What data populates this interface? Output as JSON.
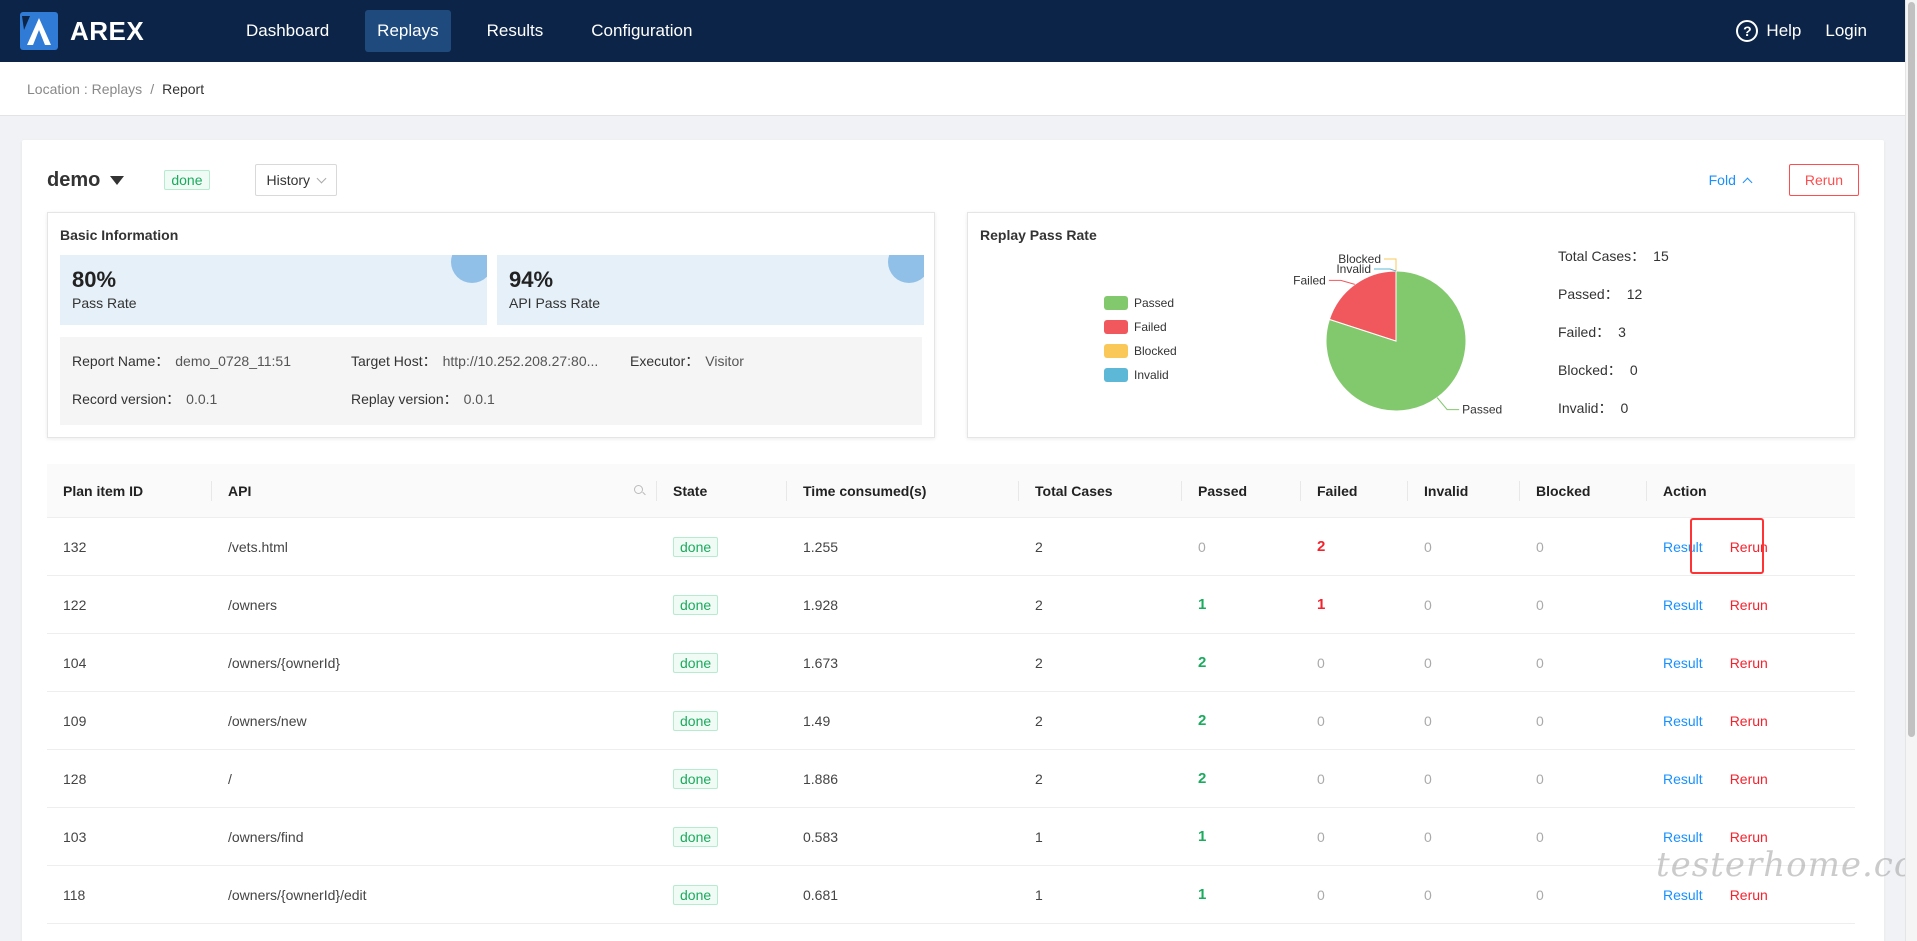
{
  "header": {
    "logo_text": "AREX",
    "nav": [
      "Dashboard",
      "Replays",
      "Results",
      "Configuration"
    ],
    "active_nav": 1,
    "help_label": "Help",
    "login_label": "Login"
  },
  "breadcrumb": {
    "location_label": "Location : Replays",
    "separator": "/",
    "current": "Report"
  },
  "report": {
    "plan_name": "demo",
    "status": "done",
    "history_label": "History",
    "fold_label": "Fold",
    "rerun_label": "Rerun"
  },
  "basic_info": {
    "title": "Basic Information",
    "pass_rate": {
      "value": "80%",
      "label": "Pass Rate"
    },
    "api_pass_rate": {
      "value": "94%",
      "label": "API Pass Rate"
    },
    "fields": [
      {
        "key": "Report Name：",
        "value": "demo_0728_11:51"
      },
      {
        "key": "Target Host：",
        "value": "http://10.252.208.27:80..."
      },
      {
        "key": "Executor：",
        "value": "Visitor"
      },
      {
        "key": "Record version：",
        "value": "0.0.1"
      },
      {
        "key": "Replay version：",
        "value": "0.0.1"
      }
    ]
  },
  "pass_rate_panel": {
    "title": "Replay Pass Rate",
    "legend": [
      {
        "name": "Passed",
        "color": "#82c96e"
      },
      {
        "name": "Failed",
        "color": "#f0585e"
      },
      {
        "name": "Blocked",
        "color": "#fac858"
      },
      {
        "name": "Invalid",
        "color": "#5cb8d6"
      }
    ],
    "summary": [
      {
        "key": "Total Cases：",
        "value": "15"
      },
      {
        "key": "Passed：",
        "value": "12"
      },
      {
        "key": "Failed：",
        "value": "3"
      },
      {
        "key": "Blocked：",
        "value": "0"
      },
      {
        "key": "Invalid：",
        "value": "0"
      }
    ]
  },
  "chart_data": {
    "type": "pie",
    "title": "Replay Pass Rate",
    "categories": [
      "Passed",
      "Failed",
      "Blocked",
      "Invalid"
    ],
    "values": [
      12,
      3,
      0,
      0
    ],
    "colors": [
      "#82c96e",
      "#f0585e",
      "#fac858",
      "#5cb8d6"
    ],
    "legend": "left"
  },
  "table": {
    "columns": [
      "Plan item ID",
      "API",
      "State",
      "Time consumed(s)",
      "Total Cases",
      "Passed",
      "Failed",
      "Invalid",
      "Blocked",
      "Action"
    ],
    "result_label": "Result",
    "rerun_label": "Rerun",
    "rows": [
      {
        "id": "132",
        "api": "/vets.html",
        "state": "done",
        "time": "1.255",
        "total": "2",
        "passed": "0",
        "failed": "2",
        "invalid": "0",
        "blocked": "0"
      },
      {
        "id": "122",
        "api": "/owners",
        "state": "done",
        "time": "1.928",
        "total": "2",
        "passed": "1",
        "failed": "1",
        "invalid": "0",
        "blocked": "0"
      },
      {
        "id": "104",
        "api": "/owners/{ownerId}",
        "state": "done",
        "time": "1.673",
        "total": "2",
        "passed": "2",
        "failed": "0",
        "invalid": "0",
        "blocked": "0"
      },
      {
        "id": "109",
        "api": "/owners/new",
        "state": "done",
        "time": "1.49",
        "total": "2",
        "passed": "2",
        "failed": "0",
        "invalid": "0",
        "blocked": "0"
      },
      {
        "id": "128",
        "api": "/",
        "state": "done",
        "time": "1.886",
        "total": "2",
        "passed": "2",
        "failed": "0",
        "invalid": "0",
        "blocked": "0"
      },
      {
        "id": "103",
        "api": "/owners/find",
        "state": "done",
        "time": "0.583",
        "total": "1",
        "passed": "1",
        "failed": "0",
        "invalid": "0",
        "blocked": "0"
      },
      {
        "id": "118",
        "api": "/owners/{ownerId}/edit",
        "state": "done",
        "time": "0.681",
        "total": "1",
        "passed": "1",
        "failed": "0",
        "invalid": "0",
        "blocked": "0"
      }
    ]
  },
  "watermark": "testerhome.com"
}
